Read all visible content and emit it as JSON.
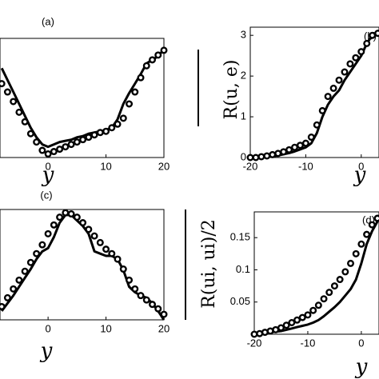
{
  "chart_data": [
    {
      "type": "line",
      "title": "(a)",
      "xlabel": "y",
      "xlim": [
        -8.3,
        20
      ],
      "ylim": [
        0,
        1
      ],
      "xticks": [
        0,
        10,
        20
      ],
      "yticks": [],
      "x": [
        -8,
        -7,
        -6,
        -5,
        -4,
        -3,
        -2,
        -1,
        0,
        1,
        2,
        3,
        4,
        5,
        6,
        7,
        8,
        9,
        10,
        11,
        12,
        13,
        14,
        15,
        16,
        17,
        18,
        19,
        20
      ],
      "series": [
        {
          "color": "#000000",
          "marker": "none",
          "values": [
            0.75,
            0.65,
            0.55,
            0.45,
            0.35,
            0.25,
            0.17,
            0.11,
            0.09,
            0.11,
            0.13,
            0.14,
            0.15,
            0.17,
            0.18,
            0.2,
            0.21,
            0.22,
            0.23,
            0.25,
            0.32,
            0.45,
            0.54,
            0.62,
            0.7,
            0.79,
            0.82,
            0.85,
            0.91
          ]
        },
        {
          "color": "#000000",
          "marker": "o",
          "values": [
            0.62,
            0.55,
            0.47,
            0.38,
            0.3,
            0.2,
            0.13,
            0.06,
            0.03,
            0.05,
            0.07,
            0.09,
            0.11,
            0.13,
            0.15,
            0.17,
            0.19,
            0.21,
            0.22,
            0.25,
            0.28,
            0.33,
            0.45,
            0.55,
            0.67,
            0.77,
            0.82,
            0.86,
            0.9
          ]
        }
      ]
    },
    {
      "type": "line",
      "title": "(b)",
      "xlabel": "y",
      "ylabel": "R(u, e)",
      "xlim": [
        -20,
        3.2
      ],
      "ylim": [
        0,
        3.2
      ],
      "xticks": [
        -20,
        -10,
        0
      ],
      "yticks": [
        0,
        1,
        2,
        3
      ],
      "x": [
        -20,
        -19,
        -18,
        -17,
        -16,
        -15,
        -14,
        -13,
        -12,
        -11,
        -10,
        -9,
        -8,
        -7,
        -6,
        -5,
        -4,
        -3,
        -2,
        -1,
        0,
        1,
        2,
        3
      ],
      "series": [
        {
          "color": "#000000",
          "marker": "none",
          "values": [
            0,
            0,
            0.01,
            0.02,
            0.03,
            0.05,
            0.08,
            0.11,
            0.15,
            0.2,
            0.25,
            0.35,
            0.6,
            1.0,
            1.3,
            1.5,
            1.65,
            1.9,
            2.1,
            2.3,
            2.5,
            2.8,
            3.0,
            3.1
          ]
        },
        {
          "color": "#000000",
          "marker": "o",
          "values": [
            0,
            0,
            0.02,
            0.04,
            0.07,
            0.1,
            0.14,
            0.19,
            0.25,
            0.3,
            0.35,
            0.5,
            0.8,
            1.15,
            1.5,
            1.7,
            1.9,
            2.1,
            2.3,
            2.45,
            2.6,
            2.8,
            3.0,
            3.05
          ]
        }
      ]
    },
    {
      "type": "line",
      "title": "(c)",
      "xlabel": "y",
      "xlim": [
        -8.3,
        20
      ],
      "ylim": [
        0,
        1
      ],
      "xticks": [
        0,
        10,
        20
      ],
      "yticks": [],
      "x": [
        -8,
        -7,
        -6,
        -5,
        -4,
        -3,
        -2,
        -1,
        0,
        1,
        2,
        3,
        4,
        5,
        6,
        7,
        8,
        9,
        10,
        11,
        12,
        13,
        14,
        15,
        16,
        17,
        18,
        19,
        20
      ],
      "series": [
        {
          "color": "#000000",
          "marker": "none",
          "values": [
            0.08,
            0.15,
            0.22,
            0.3,
            0.38,
            0.46,
            0.55,
            0.62,
            0.65,
            0.75,
            0.88,
            0.95,
            0.95,
            0.9,
            0.85,
            0.78,
            0.62,
            0.6,
            0.58,
            0.58,
            0.55,
            0.45,
            0.3,
            0.25,
            0.22,
            0.2,
            0.15,
            0.08,
            0.0
          ]
        },
        {
          "color": "#000000",
          "marker": "o",
          "values": [
            0.12,
            0.2,
            0.28,
            0.36,
            0.44,
            0.52,
            0.6,
            0.68,
            0.78,
            0.86,
            0.93,
            0.97,
            0.96,
            0.93,
            0.88,
            0.82,
            0.76,
            0.7,
            0.64,
            0.6,
            0.55,
            0.46,
            0.36,
            0.28,
            0.22,
            0.18,
            0.14,
            0.1,
            0.05
          ]
        }
      ]
    },
    {
      "type": "line",
      "title": "(d)",
      "xlabel": "y",
      "ylabel": "R(ui, ui)/2",
      "xlim": [
        -20,
        3.3
      ],
      "ylim": [
        0,
        0.19
      ],
      "xticks": [
        -20,
        -10,
        0
      ],
      "yticks": [
        0.05,
        0.1,
        0.15
      ],
      "x": [
        -20,
        -19,
        -18,
        -17,
        -16,
        -15,
        -14,
        -13,
        -12,
        -11,
        -10,
        -9,
        -8,
        -7,
        -6,
        -5,
        -4,
        -3,
        -2,
        -1,
        0,
        1,
        2,
        3
      ],
      "series": [
        {
          "color": "#000000",
          "marker": "none",
          "values": [
            0,
            0.001,
            0.002,
            0.003,
            0.004,
            0.005,
            0.007,
            0.009,
            0.011,
            0.013,
            0.015,
            0.018,
            0.022,
            0.028,
            0.035,
            0.042,
            0.05,
            0.06,
            0.07,
            0.085,
            0.11,
            0.14,
            0.16,
            0.175
          ]
        },
        {
          "color": "#000000",
          "marker": "o",
          "values": [
            0,
            0.001,
            0.003,
            0.005,
            0.007,
            0.01,
            0.014,
            0.018,
            0.022,
            0.026,
            0.03,
            0.037,
            0.045,
            0.055,
            0.065,
            0.075,
            0.085,
            0.097,
            0.11,
            0.125,
            0.14,
            0.155,
            0.17,
            0.18
          ]
        }
      ]
    }
  ]
}
